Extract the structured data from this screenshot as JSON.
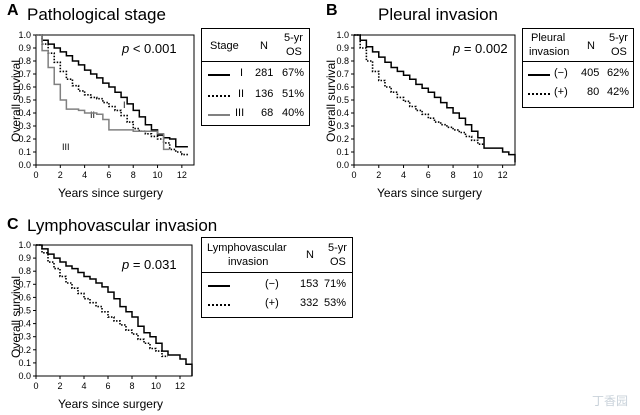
{
  "watermark": "丁香园",
  "panels": {
    "A": {
      "letter": "A",
      "title": "Pathological stage",
      "p_value_label": "p",
      "p_value_rest": " < 0.001",
      "ylabel": "Overall survival",
      "xlabel": "Years since surgery",
      "curve_labels": [
        "I",
        "II",
        "III"
      ],
      "table": {
        "headers": [
          "Stage",
          "N",
          "5-yr",
          "OS"
        ],
        "rows": [
          {
            "label": "I",
            "n": "281",
            "os": "67%"
          },
          {
            "label": "II",
            "n": "136",
            "os": "51%"
          },
          {
            "label": "III",
            "n": "68",
            "os": "40%"
          }
        ]
      }
    },
    "B": {
      "letter": "B",
      "title": "Pleural invasion",
      "p_value_label": "p",
      "p_value_rest": " = 0.002",
      "ylabel": "Overall survival",
      "xlabel": "Years since surgery",
      "table": {
        "headers": [
          "Pleural",
          "invasion",
          "N",
          "5-yr",
          "OS"
        ],
        "rows": [
          {
            "label": "(−)",
            "n": "405",
            "os": "62%"
          },
          {
            "label": "(+)",
            "n": "80",
            "os": "42%"
          }
        ]
      }
    },
    "C": {
      "letter": "C",
      "title": "Lymphovascular  invasion",
      "p_value_label": "p",
      "p_value_rest": " = 0.031",
      "ylabel": "Overall survival",
      "xlabel": "Years since surgery",
      "table": {
        "headers": [
          "Lymphovascular",
          "invasion",
          "N",
          "5-yr",
          "OS"
        ],
        "rows": [
          {
            "label": "(−)",
            "n": "153",
            "os": "71%"
          },
          {
            "label": "(+)",
            "n": "332",
            "os": "53%"
          }
        ]
      }
    }
  },
  "chart_data": [
    {
      "type": "line",
      "title": "Pathological stage",
      "xlabel": "Years since surgery",
      "ylabel": "Overall survival",
      "xlim": [
        0,
        13
      ],
      "ylim": [
        0,
        1.0
      ],
      "xticks": [
        0,
        2,
        4,
        6,
        8,
        10,
        12
      ],
      "yticks": [
        0.0,
        0.1,
        0.2,
        0.3,
        0.4,
        0.5,
        0.6,
        0.7,
        0.8,
        0.9,
        1.0
      ],
      "ytick_labels": [
        "0.0",
        "0.1",
        "0.2",
        "0.3",
        "0.4",
        "0.5",
        "0.6",
        "0.7",
        "0.8",
        "0.9",
        "1.0"
      ],
      "series": [
        {
          "name": "I",
          "style": "solid",
          "color": "#000000",
          "x": [
            0,
            0.5,
            1,
            1.5,
            2,
            2.5,
            3,
            3.5,
            4,
            4.5,
            5,
            5.5,
            6,
            6.5,
            7,
            7.5,
            8,
            8.5,
            9,
            9.5,
            10,
            10.5,
            11,
            11.5,
            12,
            12.5
          ],
          "y": [
            1.0,
            0.96,
            0.93,
            0.9,
            0.87,
            0.84,
            0.8,
            0.77,
            0.73,
            0.7,
            0.67,
            0.63,
            0.6,
            0.56,
            0.52,
            0.47,
            0.42,
            0.37,
            0.31,
            0.27,
            0.23,
            0.21,
            0.2,
            0.14,
            0.14,
            0.14
          ]
        },
        {
          "name": "II",
          "style": "dotted",
          "color": "#000000",
          "x": [
            0,
            0.5,
            1,
            1.5,
            2,
            2.5,
            3,
            3.5,
            4,
            4.5,
            5,
            5.5,
            6,
            6.5,
            7,
            7.5,
            8,
            8.5,
            9,
            9.5,
            10,
            10.5,
            11,
            11.5,
            12,
            12.5
          ],
          "y": [
            1.0,
            0.93,
            0.86,
            0.79,
            0.72,
            0.66,
            0.61,
            0.57,
            0.54,
            0.52,
            0.51,
            0.48,
            0.45,
            0.42,
            0.38,
            0.33,
            0.28,
            0.26,
            0.24,
            0.22,
            0.2,
            0.17,
            0.12,
            0.1,
            0.08,
            0.08
          ]
        },
        {
          "name": "III",
          "style": "solid",
          "color": "#808080",
          "x": [
            0,
            0.5,
            1,
            1.5,
            2,
            2.5,
            3,
            3.5,
            4,
            4.5,
            5,
            5.5,
            6,
            7,
            8,
            9,
            10,
            10.5,
            11
          ],
          "y": [
            1.0,
            0.88,
            0.75,
            0.62,
            0.5,
            0.43,
            0.43,
            0.42,
            0.4,
            0.4,
            0.39,
            0.35,
            0.27,
            0.27,
            0.26,
            0.26,
            0.24,
            0.12,
            0.12
          ]
        }
      ]
    },
    {
      "type": "line",
      "title": "Pleural invasion",
      "xlabel": "Years since surgery",
      "ylabel": "Overall survival",
      "xlim": [
        0,
        13
      ],
      "ylim": [
        0,
        1.0
      ],
      "xticks": [
        0,
        2,
        4,
        6,
        8,
        10,
        12
      ],
      "yticks": [
        0.0,
        0.1,
        0.2,
        0.3,
        0.4,
        0.5,
        0.6,
        0.7,
        0.8,
        0.9,
        1.0
      ],
      "ytick_labels": [
        "0.0",
        "0.1",
        "0.2",
        "0.3",
        "0.4",
        "0.5",
        "0.6",
        "0.7",
        "0.8",
        "0.9",
        "1.0"
      ],
      "series": [
        {
          "name": "(−)",
          "style": "solid",
          "color": "#000000",
          "x": [
            0,
            0.5,
            1,
            1.5,
            2,
            2.5,
            3,
            3.5,
            4,
            4.5,
            5,
            5.5,
            6,
            6.5,
            7,
            7.5,
            8,
            8.5,
            9,
            9.5,
            10,
            10.5,
            11,
            11.5,
            12,
            12.5,
            13
          ],
          "y": [
            1.0,
            0.96,
            0.91,
            0.87,
            0.83,
            0.79,
            0.75,
            0.72,
            0.69,
            0.66,
            0.62,
            0.59,
            0.56,
            0.52,
            0.48,
            0.44,
            0.4,
            0.36,
            0.31,
            0.26,
            0.21,
            0.13,
            0.13,
            0.13,
            0.1,
            0.08,
            0.02
          ]
        },
        {
          "name": "(+)",
          "style": "dotted",
          "color": "#000000",
          "x": [
            0,
            0.5,
            1,
            1.5,
            2,
            2.5,
            3,
            3.5,
            4,
            4.5,
            5,
            5.5,
            6,
            6.5,
            7,
            7.5,
            8,
            8.5,
            9,
            9.5,
            10,
            10.5
          ],
          "y": [
            1.0,
            0.9,
            0.8,
            0.72,
            0.65,
            0.6,
            0.56,
            0.52,
            0.49,
            0.45,
            0.42,
            0.39,
            0.36,
            0.33,
            0.31,
            0.29,
            0.27,
            0.25,
            0.22,
            0.19,
            0.16,
            0.16
          ]
        }
      ]
    },
    {
      "type": "line",
      "title": "Lymphovascular  invasion",
      "xlabel": "Years since surgery",
      "ylabel": "Overall survival",
      "xlim": [
        0,
        13
      ],
      "ylim": [
        0,
        1.0
      ],
      "xticks": [
        0,
        2,
        4,
        6,
        8,
        10,
        12
      ],
      "yticks": [
        0.0,
        0.1,
        0.2,
        0.3,
        0.4,
        0.5,
        0.6,
        0.7,
        0.8,
        0.9,
        1.0
      ],
      "ytick_labels": [
        "0.0",
        "0.1",
        "0.2",
        "0.3",
        "0.4",
        "0.5",
        "0.6",
        "0.7",
        "0.8",
        "0.9",
        "1.0"
      ],
      "series": [
        {
          "name": "(−)",
          "style": "solid",
          "color": "#000000",
          "x": [
            0,
            0.5,
            1,
            1.5,
            2,
            2.5,
            3,
            3.5,
            4,
            4.5,
            5,
            5.5,
            6,
            6.5,
            7,
            7.5,
            8,
            8.5,
            9,
            9.5,
            10,
            10.5,
            11,
            11.5,
            12,
            12.5,
            13
          ],
          "y": [
            1.0,
            0.97,
            0.93,
            0.9,
            0.87,
            0.84,
            0.82,
            0.79,
            0.76,
            0.74,
            0.71,
            0.68,
            0.64,
            0.59,
            0.53,
            0.49,
            0.45,
            0.38,
            0.33,
            0.3,
            0.25,
            0.19,
            0.16,
            0.16,
            0.13,
            0.09,
            0.0
          ]
        },
        {
          "name": "(+)",
          "style": "dotted",
          "color": "#000000",
          "x": [
            0,
            0.5,
            1,
            1.5,
            2,
            2.5,
            3,
            3.5,
            4,
            4.5,
            5,
            5.5,
            6,
            6.5,
            7,
            7.5,
            8,
            8.5,
            9,
            9.5,
            10,
            10.5,
            11
          ],
          "y": [
            1.0,
            0.94,
            0.87,
            0.82,
            0.76,
            0.71,
            0.67,
            0.63,
            0.59,
            0.56,
            0.53,
            0.49,
            0.45,
            0.42,
            0.39,
            0.35,
            0.32,
            0.28,
            0.25,
            0.21,
            0.19,
            0.15,
            0.15
          ]
        }
      ]
    }
  ]
}
